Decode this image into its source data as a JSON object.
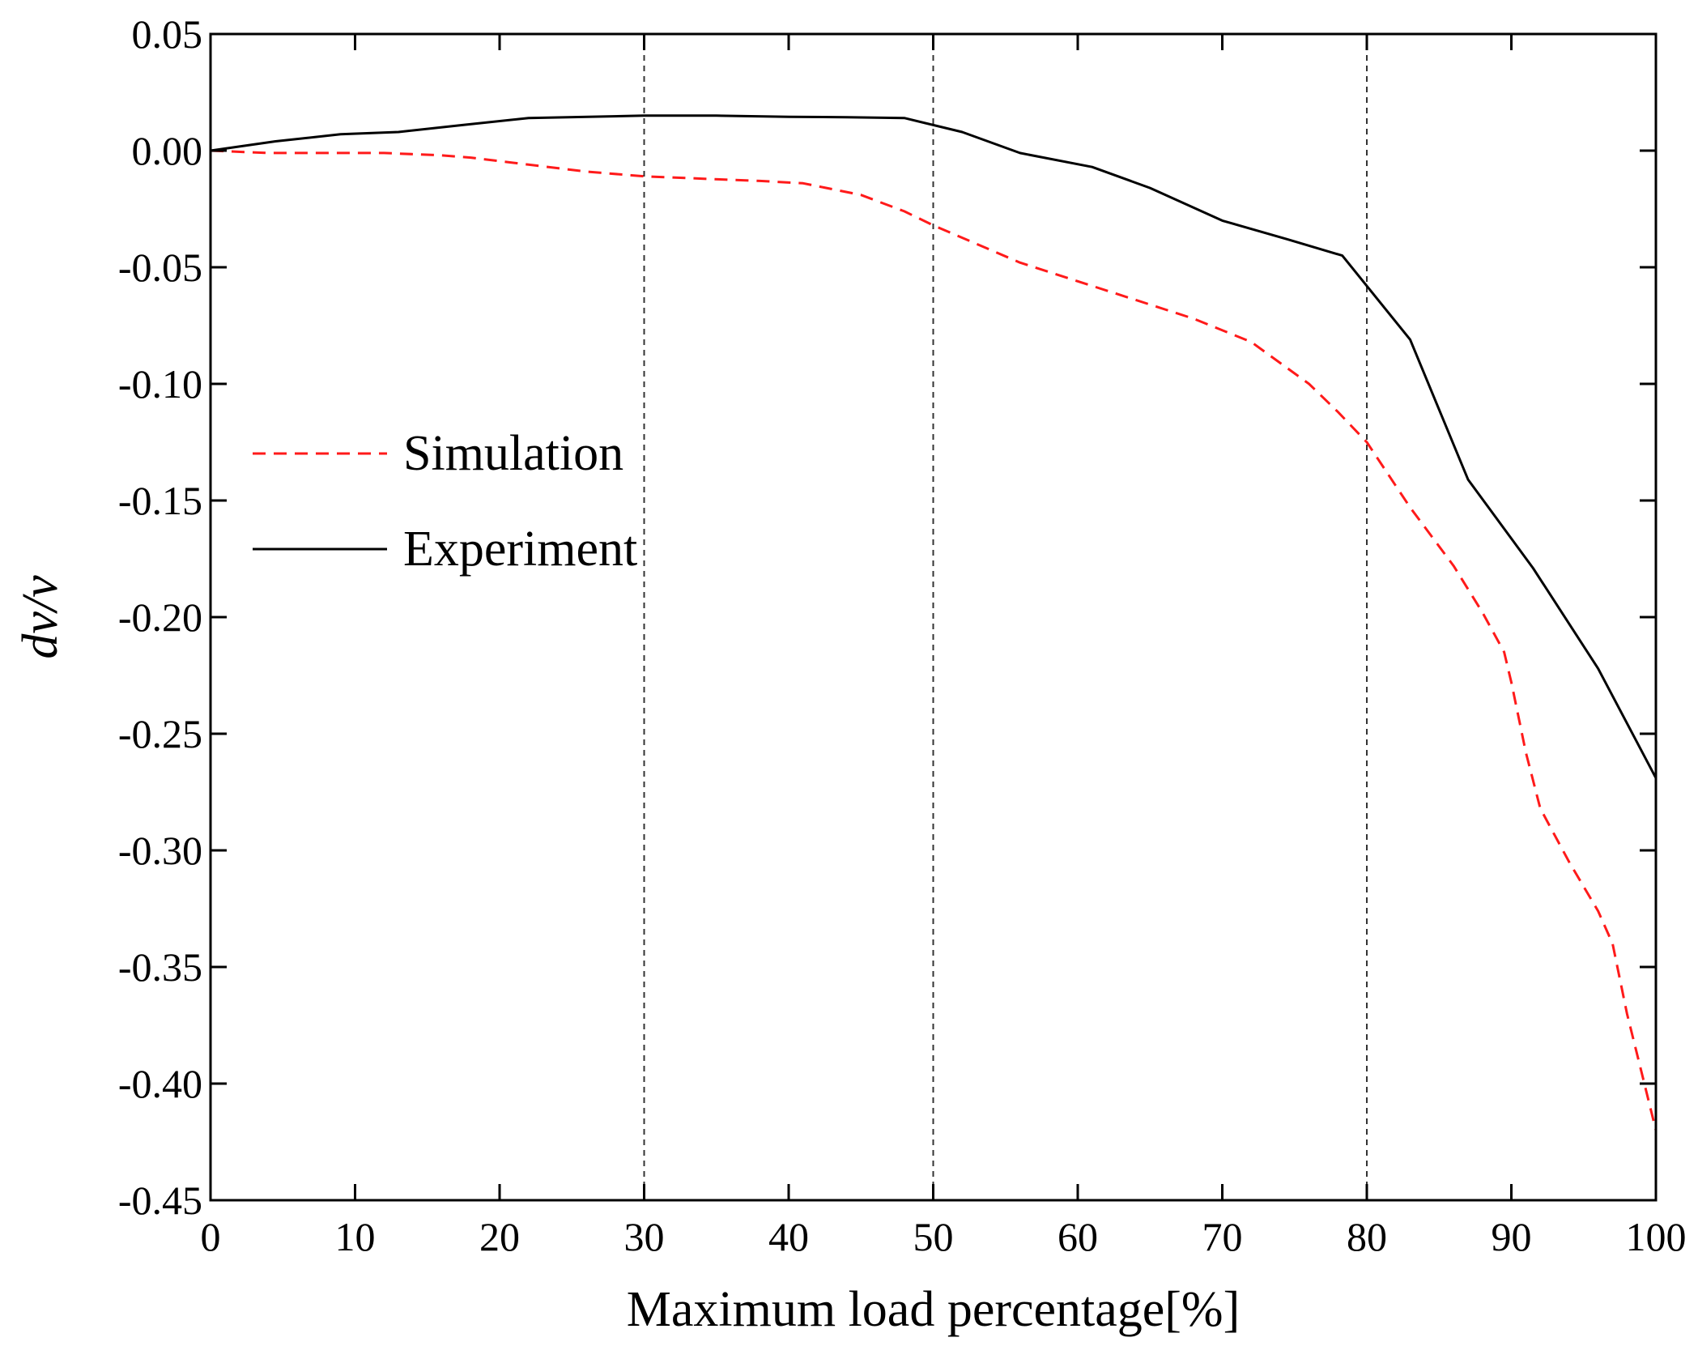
{
  "chart_data": {
    "type": "line",
    "xlabel": "Maximum load percentage[%]",
    "ylabel": "dv/v",
    "xlim": [
      0,
      100
    ],
    "ylim": [
      -0.45,
      0.05
    ],
    "x_ticks": [
      0,
      10,
      20,
      30,
      40,
      50,
      60,
      70,
      80,
      90,
      100
    ],
    "x_tick_labels": [
      "0",
      "10",
      "20",
      "30",
      "40",
      "50",
      "60",
      "70",
      "80",
      "90",
      "100"
    ],
    "y_ticks": [
      0.05,
      0.0,
      -0.05,
      -0.1,
      -0.15,
      -0.2,
      -0.25,
      -0.3,
      -0.35,
      -0.4,
      -0.45
    ],
    "y_tick_labels": [
      "0.05",
      "0.00",
      "-0.05",
      "-0.10",
      "-0.15",
      "-0.20",
      "-0.25",
      "-0.30",
      "-0.35",
      "-0.40",
      "-0.45"
    ],
    "vertical_reference_lines": [
      30,
      50,
      80
    ],
    "grid": false,
    "legend_position": "middle-left",
    "series": [
      {
        "name": "Simulation",
        "color": "#ff1a1a",
        "style": "dashed",
        "x": [
          0,
          4,
          8,
          12,
          16,
          18,
          22,
          26,
          30,
          34,
          38,
          41,
          45,
          48,
          50,
          53,
          56,
          60,
          64,
          68,
          72,
          76,
          78,
          80,
          83,
          86,
          88,
          89.5,
          90,
          91,
          92,
          94,
          96,
          97,
          98,
          99,
          100
        ],
        "y": [
          0.0,
          -0.001,
          -0.001,
          -0.001,
          -0.002,
          -0.003,
          -0.006,
          -0.009,
          -0.011,
          -0.012,
          -0.013,
          -0.014,
          -0.019,
          -0.026,
          -0.032,
          -0.04,
          -0.048,
          -0.056,
          -0.064,
          -0.072,
          -0.082,
          -0.1,
          -0.112,
          -0.125,
          -0.153,
          -0.178,
          -0.198,
          -0.215,
          -0.228,
          -0.258,
          -0.282,
          -0.305,
          -0.326,
          -0.34,
          -0.37,
          -0.395,
          -0.42
        ]
      },
      {
        "name": "Experiment",
        "color": "#000000",
        "style": "solid",
        "x": [
          0,
          4.5,
          9,
          13,
          17.5,
          22,
          30,
          35,
          40,
          44,
          48,
          52,
          56,
          61,
          65,
          70,
          74.5,
          78.3,
          83,
          87,
          91.5,
          96,
          100
        ],
        "y": [
          0.0,
          0.004,
          0.007,
          0.008,
          0.011,
          0.014,
          0.015,
          0.015,
          0.0145,
          0.0143,
          0.014,
          0.008,
          -0.001,
          -0.007,
          -0.016,
          -0.03,
          -0.038,
          -0.045,
          -0.081,
          -0.141,
          -0.179,
          -0.222,
          -0.269
        ]
      }
    ]
  }
}
